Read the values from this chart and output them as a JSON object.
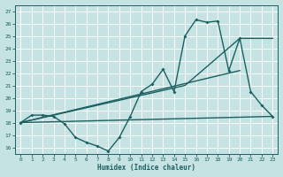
{
  "xlabel": "Humidex (Indice chaleur)",
  "xlim": [
    -0.5,
    23.5
  ],
  "ylim": [
    15.5,
    27.5
  ],
  "xticks": [
    0,
    1,
    2,
    3,
    4,
    5,
    6,
    7,
    8,
    9,
    10,
    11,
    12,
    13,
    14,
    15,
    16,
    17,
    18,
    19,
    20,
    21,
    22,
    23
  ],
  "yticks": [
    16,
    17,
    18,
    19,
    20,
    21,
    22,
    23,
    24,
    25,
    26,
    27
  ],
  "bg_color": "#c5e3e3",
  "line_color": "#1a6060",
  "grid_color": "#ffffff",
  "series1_x": [
    0,
    1,
    2,
    3,
    4,
    5,
    6,
    7,
    8,
    9,
    10,
    11,
    12,
    13,
    14,
    15,
    16,
    17,
    18,
    19,
    20,
    21,
    22,
    23
  ],
  "series1_y": [
    18.0,
    18.6,
    18.6,
    18.5,
    17.9,
    16.8,
    16.4,
    16.1,
    15.7,
    16.8,
    18.5,
    20.5,
    21.1,
    22.3,
    20.5,
    25.0,
    26.3,
    26.1,
    26.2,
    22.2,
    24.8,
    20.5,
    19.4,
    18.5
  ],
  "line2_x": [
    0,
    23
  ],
  "line2_y": [
    18.0,
    18.5
  ],
  "line3_x": [
    0,
    20
  ],
  "line3_y": [
    18.0,
    22.2
  ],
  "line4_x": [
    0,
    15,
    20,
    23
  ],
  "line4_y": [
    18.0,
    21.0,
    24.8,
    24.8
  ]
}
